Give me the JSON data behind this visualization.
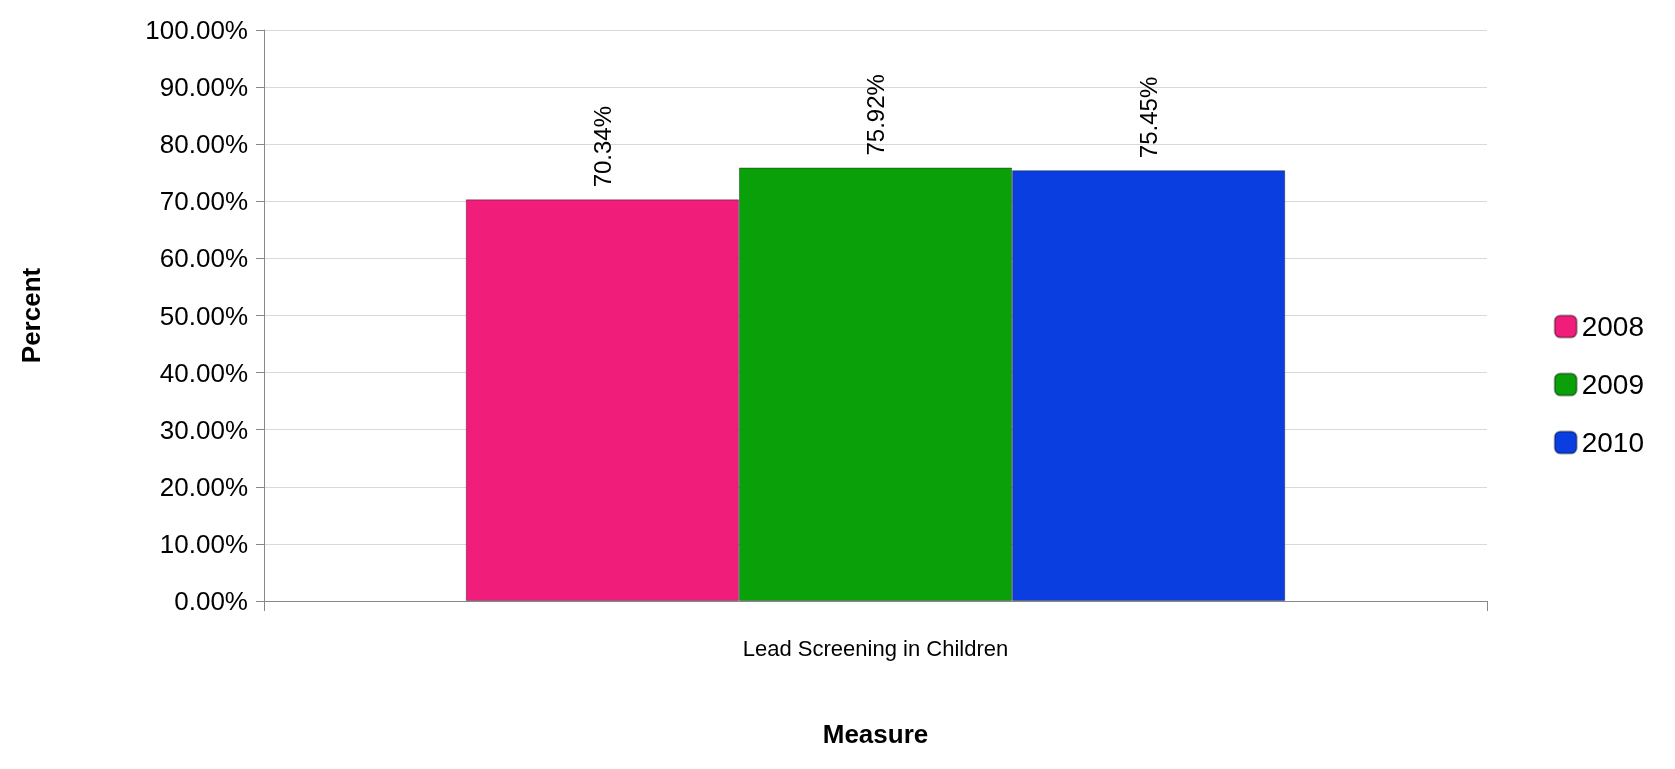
{
  "chart_data": {
    "type": "bar",
    "xlabel": "Measure",
    "ylabel": "Percent",
    "categories": [
      "Lead Screening in Children"
    ],
    "series": [
      {
        "name": "2008",
        "color": "#f01d7a",
        "values": [
          70.34
        ],
        "value_labels": [
          "70.34%"
        ]
      },
      {
        "name": "2009",
        "color": "#0aa00a",
        "values": [
          75.92
        ],
        "value_labels": [
          "75.92%"
        ]
      },
      {
        "name": "2010",
        "color": "#0a3ee0",
        "values": [
          75.45
        ],
        "value_labels": [
          "75.45%"
        ]
      }
    ],
    "ylim": [
      0,
      100
    ],
    "yticks": [
      {
        "value": 0,
        "label": "0.00%"
      },
      {
        "value": 10,
        "label": "10.00%"
      },
      {
        "value": 20,
        "label": "20.00%"
      },
      {
        "value": 30,
        "label": "30.00%"
      },
      {
        "value": 40,
        "label": "40.00%"
      },
      {
        "value": 50,
        "label": "50.00%"
      },
      {
        "value": 60,
        "label": "60.00%"
      },
      {
        "value": 70,
        "label": "70.00%"
      },
      {
        "value": 80,
        "label": "80.00%"
      },
      {
        "value": 90,
        "label": "90.00%"
      },
      {
        "value": 100,
        "label": "100.00%"
      }
    ],
    "grid": "y",
    "legend": "right"
  }
}
